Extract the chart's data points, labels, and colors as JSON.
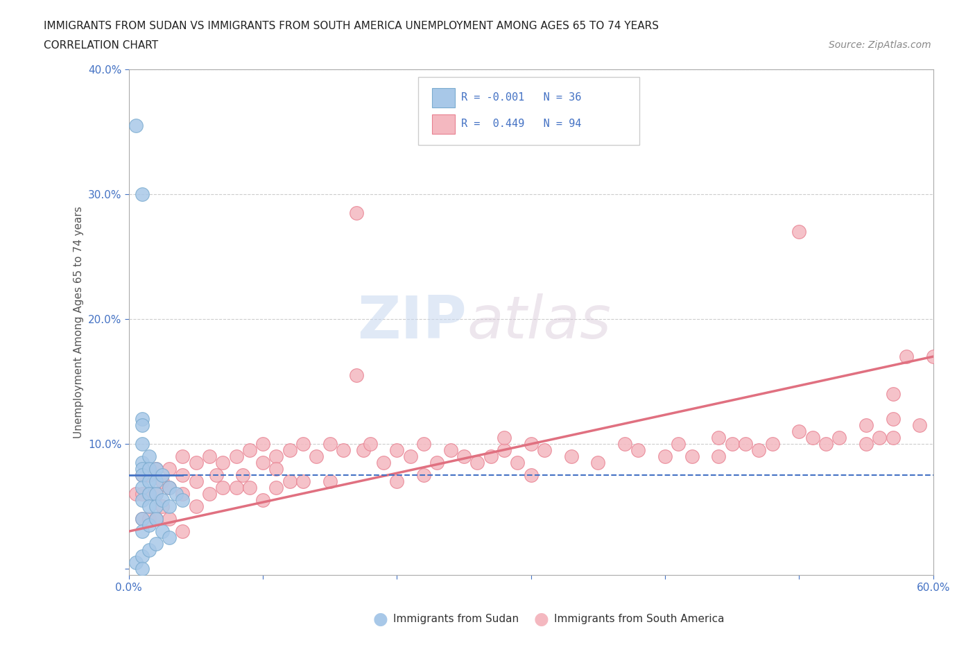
{
  "title_line1": "IMMIGRANTS FROM SUDAN VS IMMIGRANTS FROM SOUTH AMERICA UNEMPLOYMENT AMONG AGES 65 TO 74 YEARS",
  "title_line2": "CORRELATION CHART",
  "source_text": "Source: ZipAtlas.com",
  "ylabel": "Unemployment Among Ages 65 to 74 years",
  "xlim": [
    0.0,
    0.6
  ],
  "ylim": [
    -0.005,
    0.4
  ],
  "color_sudan": "#a8c8e8",
  "color_sudan_edge": "#7aabcf",
  "color_south_america": "#f4b8c0",
  "color_south_america_edge": "#e88090",
  "color_sudan_line": "#4472c4",
  "color_south_america_line": "#e07080",
  "watermark_zip": "ZIP",
  "watermark_atlas": "atlas",
  "sudan_x": [
    0.005,
    0.005,
    0.01,
    0.01,
    0.01,
    0.01,
    0.01,
    0.01,
    0.01,
    0.01,
    0.01,
    0.01,
    0.01,
    0.01,
    0.015,
    0.015,
    0.015,
    0.015,
    0.015,
    0.015,
    0.015,
    0.02,
    0.02,
    0.02,
    0.02,
    0.02,
    0.02,
    0.025,
    0.025,
    0.025,
    0.03,
    0.03,
    0.03,
    0.035,
    0.04,
    0.01
  ],
  "sudan_y": [
    0.355,
    0.005,
    0.3,
    0.12,
    0.115,
    0.1,
    0.085,
    0.08,
    0.075,
    0.065,
    0.055,
    0.04,
    0.03,
    0.01,
    0.09,
    0.08,
    0.07,
    0.06,
    0.05,
    0.035,
    0.015,
    0.08,
    0.07,
    0.06,
    0.05,
    0.04,
    0.02,
    0.075,
    0.055,
    0.03,
    0.065,
    0.05,
    0.025,
    0.06,
    0.055,
    0.0
  ],
  "sa_x": [
    0.005,
    0.01,
    0.01,
    0.01,
    0.015,
    0.015,
    0.015,
    0.02,
    0.02,
    0.02,
    0.025,
    0.025,
    0.03,
    0.03,
    0.03,
    0.04,
    0.04,
    0.04,
    0.04,
    0.05,
    0.05,
    0.05,
    0.06,
    0.06,
    0.065,
    0.07,
    0.07,
    0.08,
    0.08,
    0.085,
    0.09,
    0.09,
    0.1,
    0.1,
    0.1,
    0.11,
    0.11,
    0.12,
    0.12,
    0.13,
    0.13,
    0.14,
    0.15,
    0.15,
    0.16,
    0.17,
    0.175,
    0.18,
    0.19,
    0.2,
    0.2,
    0.21,
    0.22,
    0.22,
    0.23,
    0.24,
    0.25,
    0.26,
    0.27,
    0.28,
    0.29,
    0.3,
    0.3,
    0.31,
    0.33,
    0.35,
    0.37,
    0.38,
    0.4,
    0.41,
    0.42,
    0.44,
    0.44,
    0.45,
    0.46,
    0.47,
    0.48,
    0.5,
    0.51,
    0.52,
    0.53,
    0.55,
    0.55,
    0.56,
    0.57,
    0.57,
    0.58,
    0.59,
    0.6,
    0.11,
    0.17,
    0.28,
    0.5,
    0.57
  ],
  "sa_y": [
    0.06,
    0.075,
    0.06,
    0.04,
    0.075,
    0.06,
    0.04,
    0.08,
    0.06,
    0.04,
    0.07,
    0.05,
    0.08,
    0.065,
    0.04,
    0.09,
    0.075,
    0.06,
    0.03,
    0.085,
    0.07,
    0.05,
    0.09,
    0.06,
    0.075,
    0.085,
    0.065,
    0.09,
    0.065,
    0.075,
    0.095,
    0.065,
    0.1,
    0.085,
    0.055,
    0.09,
    0.065,
    0.095,
    0.07,
    0.1,
    0.07,
    0.09,
    0.1,
    0.07,
    0.095,
    0.285,
    0.095,
    0.1,
    0.085,
    0.095,
    0.07,
    0.09,
    0.1,
    0.075,
    0.085,
    0.095,
    0.09,
    0.085,
    0.09,
    0.095,
    0.085,
    0.1,
    0.075,
    0.095,
    0.09,
    0.085,
    0.1,
    0.095,
    0.09,
    0.1,
    0.09,
    0.105,
    0.09,
    0.1,
    0.1,
    0.095,
    0.1,
    0.11,
    0.105,
    0.1,
    0.105,
    0.115,
    0.1,
    0.105,
    0.12,
    0.105,
    0.17,
    0.115,
    0.17,
    0.08,
    0.155,
    0.105,
    0.27,
    0.14
  ]
}
